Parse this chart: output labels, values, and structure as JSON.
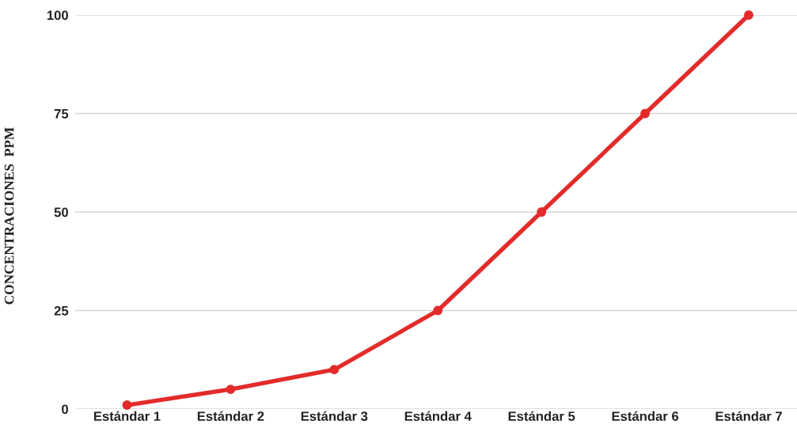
{
  "chart_data": {
    "type": "line",
    "ylabel": "CONCENTRACIONES  PPM",
    "categories": [
      "Estándar 1",
      "Estándar 2",
      "Estándar 3",
      "Estándar 4",
      "Estándar 5",
      "Estándar 6",
      "Estándar 7"
    ],
    "series": [
      {
        "color": "#e32b2b",
        "values": [
          1,
          5,
          10,
          25,
          50,
          75,
          100
        ]
      }
    ],
    "ylim": [
      0,
      100
    ],
    "yticks": [
      0,
      25,
      50,
      75,
      100
    ],
    "grid": "y",
    "marker": "circle",
    "line_style": "solid"
  }
}
